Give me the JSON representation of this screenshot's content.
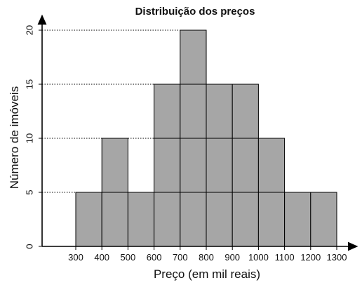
{
  "chart_data": {
    "type": "bar",
    "title": "Distribuição dos preços",
    "xlabel": "Preço (em mil reais)",
    "ylabel": "Número de imóveis",
    "x_ticks": [
      "300",
      "400",
      "500",
      "600",
      "700",
      "800",
      "900",
      "1000",
      "1100",
      "1200",
      "1300"
    ],
    "y_ticks": [
      "0",
      "5",
      "10",
      "15",
      "20"
    ],
    "bins": [
      {
        "from": 300,
        "to": 400,
        "value": 5
      },
      {
        "from": 400,
        "to": 500,
        "value": 10
      },
      {
        "from": 500,
        "to": 600,
        "value": 5
      },
      {
        "from": 600,
        "to": 700,
        "value": 15
      },
      {
        "from": 700,
        "to": 800,
        "value": 20
      },
      {
        "from": 800,
        "to": 900,
        "value": 15
      },
      {
        "from": 900,
        "to": 1000,
        "value": 15
      },
      {
        "from": 1000,
        "to": 1100,
        "value": 10
      },
      {
        "from": 1100,
        "to": 1200,
        "value": 5
      },
      {
        "from": 1200,
        "to": 1300,
        "value": 5
      }
    ],
    "xlim": [
      300,
      1300
    ],
    "ylim": [
      0,
      20
    ],
    "reference_lines": [
      5,
      10,
      15,
      20
    ],
    "bar_color": "#a6a6a6",
    "grid": false
  }
}
